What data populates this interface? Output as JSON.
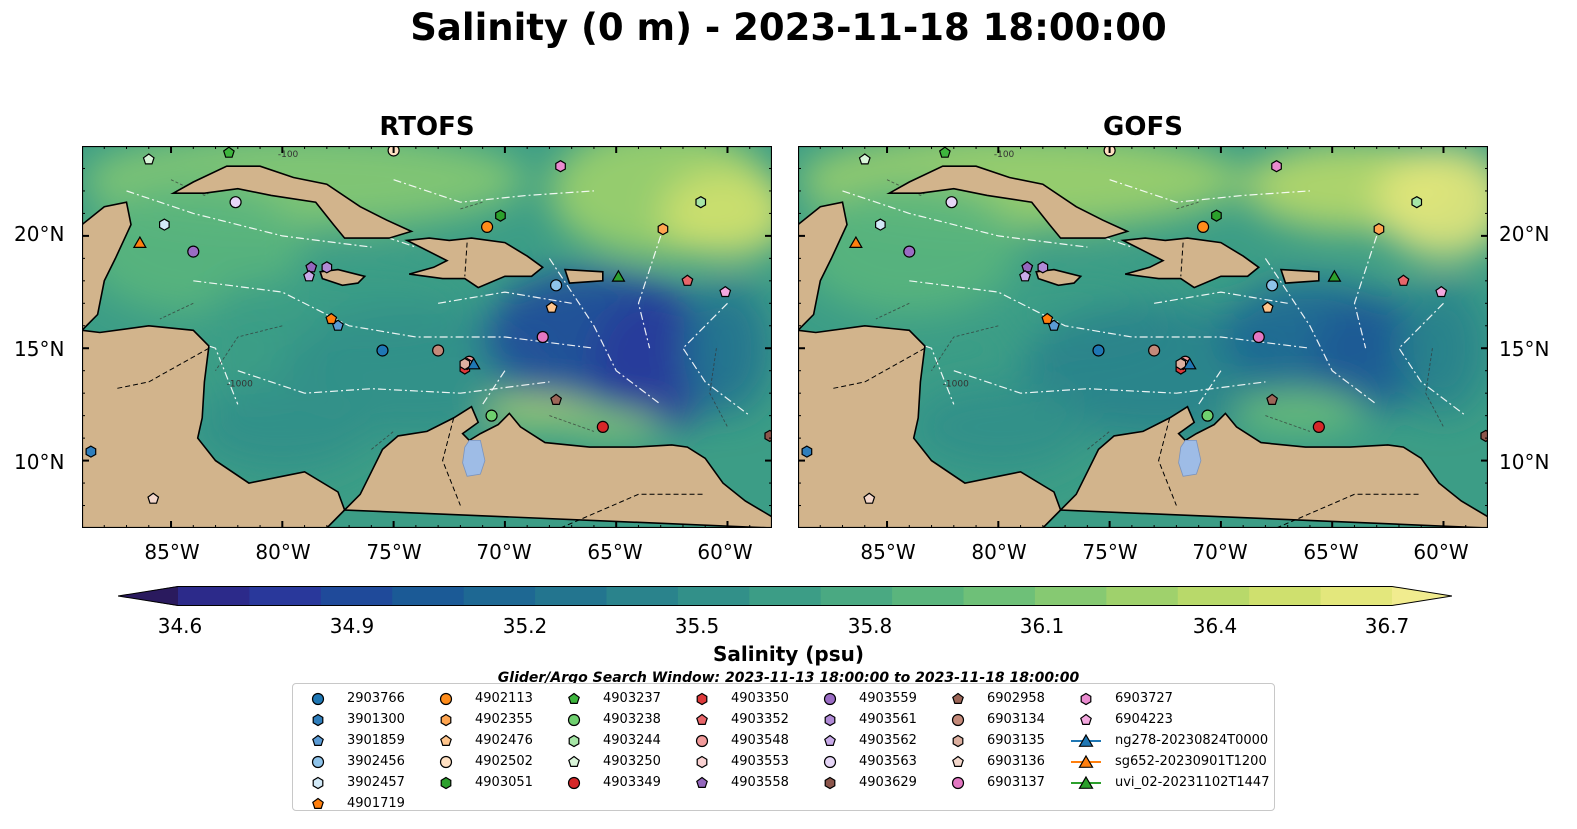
{
  "title": "Salinity (0 m) - 2023-11-18 18:00:00",
  "panels": [
    {
      "title": "RTOFS"
    },
    {
      "title": "GOFS"
    }
  ],
  "axes": {
    "lat_labels": [
      "20°N",
      "15°N",
      "10°N"
    ],
    "lon_labels": [
      "85°W",
      "80°W",
      "75°W",
      "70°W",
      "65°W",
      "60°W"
    ]
  },
  "contour_labels": [
    "-100",
    "-1000"
  ],
  "colorbar": {
    "label": "Salinity (psu)",
    "ticks": [
      "34.6",
      "34.9",
      "35.2",
      "35.5",
      "35.8",
      "36.1",
      "36.4",
      "36.7"
    ],
    "colors": [
      "#2a1a5e",
      "#2c2a8a",
      "#29389b",
      "#1f4a9a",
      "#1b5a96",
      "#1e6893",
      "#23758f",
      "#2a838c",
      "#329089",
      "#3c9d86",
      "#4aa982",
      "#5ab57d",
      "#6ec078",
      "#86c972",
      "#9fd16c",
      "#b8d96a",
      "#cfe06e",
      "#e3e77c",
      "#f1ec8f"
    ],
    "extend": "both"
  },
  "search_window": "Glider/Argo Search Window: 2023-11-13 18:00:00 to 2023-11-18 18:00:00",
  "legend": [
    {
      "label": "2903766",
      "marker": "circle",
      "color": "#1f77b4"
    },
    {
      "label": "3901300",
      "marker": "hexagon",
      "color": "#2f7ebc"
    },
    {
      "label": "3901859",
      "marker": "pentagon",
      "color": "#5b9bd5"
    },
    {
      "label": "3902456",
      "marker": "circle",
      "color": "#8ec3ea"
    },
    {
      "label": "3902457",
      "marker": "hexagon",
      "color": "#d2e9f7"
    },
    {
      "label": "4901719",
      "marker": "pentagon",
      "color": "#ff7f0e"
    },
    {
      "label": "4902113",
      "marker": "circle",
      "color": "#ff8c1a"
    },
    {
      "label": "4902355",
      "marker": "hexagon",
      "color": "#ffa550"
    },
    {
      "label": "4902476",
      "marker": "pentagon",
      "color": "#ffc58c"
    },
    {
      "label": "4902502",
      "marker": "circle",
      "color": "#ffe0c2"
    },
    {
      "label": "4903051",
      "marker": "hexagon",
      "color": "#2ca02c"
    },
    {
      "label": "4903237",
      "marker": "pentagon",
      "color": "#3db53d"
    },
    {
      "label": "4903238",
      "marker": "circle",
      "color": "#6fd06f"
    },
    {
      "label": "4903244",
      "marker": "hexagon",
      "color": "#a6e6a6"
    },
    {
      "label": "4903250",
      "marker": "pentagon",
      "color": "#d9f5d9"
    },
    {
      "label": "4903349",
      "marker": "circle",
      "color": "#d62728"
    },
    {
      "label": "4903350",
      "marker": "hexagon",
      "color": "#dd3a3b"
    },
    {
      "label": "4903352",
      "marker": "pentagon",
      "color": "#e8666a"
    },
    {
      "label": "4903548",
      "marker": "circle",
      "color": "#f19a9a"
    },
    {
      "label": "4903553",
      "marker": "hexagon",
      "color": "#fad2d2"
    },
    {
      "label": "4903558",
      "marker": "pentagon",
      "color": "#9467bd"
    },
    {
      "label": "4903559",
      "marker": "circle",
      "color": "#9a6cc4"
    },
    {
      "label": "4903561",
      "marker": "hexagon",
      "color": "#b08ad6"
    },
    {
      "label": "4903562",
      "marker": "pentagon",
      "color": "#c8aae8"
    },
    {
      "label": "4903563",
      "marker": "circle",
      "color": "#e6d6f7"
    },
    {
      "label": "4903629",
      "marker": "hexagon",
      "color": "#8c564b"
    },
    {
      "label": "6902958",
      "marker": "pentagon",
      "color": "#9c6658"
    },
    {
      "label": "6903134",
      "marker": "circle",
      "color": "#c48a7a"
    },
    {
      "label": "6903135",
      "marker": "hexagon",
      "color": "#ddb0a0"
    },
    {
      "label": "6903136",
      "marker": "pentagon",
      "color": "#f3d7cb"
    },
    {
      "label": "6903137",
      "marker": "circle",
      "color": "#e377c2"
    },
    {
      "label": "6903727",
      "marker": "hexagon",
      "color": "#ea8bd0"
    },
    {
      "label": "6904223",
      "marker": "pentagon",
      "color": "#f4a8df"
    },
    {
      "label": "ng278-20230824T0000",
      "marker": "triangle-line",
      "color": "#1f77b4"
    },
    {
      "label": "sg652-20230901T1200",
      "marker": "triangle-line",
      "color": "#ff7f0e"
    },
    {
      "label": "uvi_02-20231102T1447",
      "marker": "triangle-line",
      "color": "#2ca02c"
    }
  ],
  "map": {
    "lon_range": [
      -89,
      -58
    ],
    "lat_range": [
      7,
      24
    ],
    "land_color": "#d2b48c",
    "lake_color": "#9ebce6",
    "observations": [
      {
        "id": "2903766",
        "lon": -75.5,
        "lat": 14.9
      },
      {
        "id": "3901300",
        "lon": -88.6,
        "lat": 10.4
      },
      {
        "id": "3901859",
        "lon": -77.5,
        "lat": 16.0
      },
      {
        "id": "3902456",
        "lon": -67.7,
        "lat": 17.8
      },
      {
        "id": "3902457",
        "lon": -85.3,
        "lat": 20.5
      },
      {
        "id": "4901719",
        "lon": -77.8,
        "lat": 16.3
      },
      {
        "id": "4902113",
        "lon": -70.8,
        "lat": 20.4
      },
      {
        "id": "4902355",
        "lon": -62.9,
        "lat": 20.3
      },
      {
        "id": "4902476",
        "lon": -67.9,
        "lat": 16.8
      },
      {
        "id": "4902502",
        "lon": -75.0,
        "lat": 23.8
      },
      {
        "id": "4903051",
        "lon": -70.2,
        "lat": 20.9
      },
      {
        "id": "4903237",
        "lon": -82.4,
        "lat": 23.7
      },
      {
        "id": "4903238",
        "lon": -70.6,
        "lat": 12.0
      },
      {
        "id": "4903244",
        "lon": -61.2,
        "lat": 21.5
      },
      {
        "id": "4903250",
        "lon": -86.0,
        "lat": 23.4
      },
      {
        "id": "4903349",
        "lon": -65.6,
        "lat": 11.5
      },
      {
        "id": "4903350",
        "lon": -71.8,
        "lat": 14.1
      },
      {
        "id": "4903352",
        "lon": -61.8,
        "lat": 18.0
      },
      {
        "id": "4903548",
        "lon": -71.6,
        "lat": 14.4
      },
      {
        "id": "4903553",
        "lon": -71.7,
        "lat": 14.3
      },
      {
        "id": "4903558",
        "lon": -78.7,
        "lat": 18.6
      },
      {
        "id": "4903559",
        "lon": -84.0,
        "lat": 19.3
      },
      {
        "id": "4903561",
        "lon": -78.0,
        "lat": 18.6
      },
      {
        "id": "4903562",
        "lon": -78.8,
        "lat": 18.2
      },
      {
        "id": "4903563",
        "lon": -82.1,
        "lat": 21.5
      },
      {
        "id": "4903629",
        "lon": -58.1,
        "lat": 11.1
      },
      {
        "id": "6902958",
        "lon": -67.7,
        "lat": 12.7
      },
      {
        "id": "6903134",
        "lon": -73.0,
        "lat": 14.9
      },
      {
        "id": "6903135",
        "lon": -71.8,
        "lat": 14.3
      },
      {
        "id": "6903136",
        "lon": -85.8,
        "lat": 8.3
      },
      {
        "id": "6903137",
        "lon": -68.3,
        "lat": 15.5
      },
      {
        "id": "6903727",
        "lon": -67.5,
        "lat": 23.1
      },
      {
        "id": "6904223",
        "lon": -60.1,
        "lat": 17.5
      },
      {
        "id": "ng278-20230824T0000",
        "lon": -71.4,
        "lat": 14.3
      },
      {
        "id": "sg652-20230901T1200",
        "lon": -86.4,
        "lat": 19.7
      },
      {
        "id": "uvi_02-20231102T1447",
        "lon": -64.9,
        "lat": 18.2
      }
    ]
  }
}
